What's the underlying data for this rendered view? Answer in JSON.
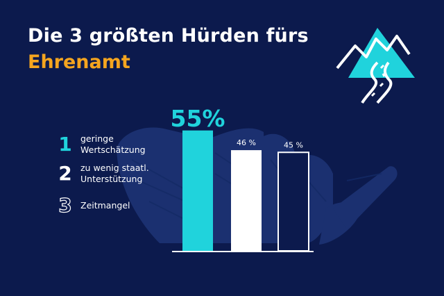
{
  "header": {
    "title_line1": "Die 3 größten Hürden fürs",
    "title_line2": "Ehrenamt"
  },
  "colors": {
    "background": "#0c1a4d",
    "accent_cyan": "#20d3dc",
    "accent_orange": "#f5a51f",
    "white": "#ffffff",
    "hand_shadow": "#1e3577"
  },
  "legend": [
    {
      "number": "1",
      "line1": "geringe",
      "line2": "Wertschätzung"
    },
    {
      "number": "2",
      "line1": "zu wenig staatl.",
      "line2": "Unterstützung"
    },
    {
      "number": "3",
      "line1": "Zeitmangel",
      "line2": ""
    }
  ],
  "logo": {
    "icon": "mountain-road-icon"
  },
  "chart_data": {
    "type": "bar",
    "categories": [
      "geringe Wertschätzung",
      "zu wenig staatl. Unterstützung",
      "Zeitmangel"
    ],
    "values": [
      55,
      46,
      45
    ],
    "labels": [
      "55%",
      "46 %",
      "45 %"
    ],
    "unit": "%",
    "styles": [
      "filled-cyan",
      "filled-white",
      "outline-white"
    ],
    "ylim": [
      0,
      100
    ],
    "grid": false
  }
}
